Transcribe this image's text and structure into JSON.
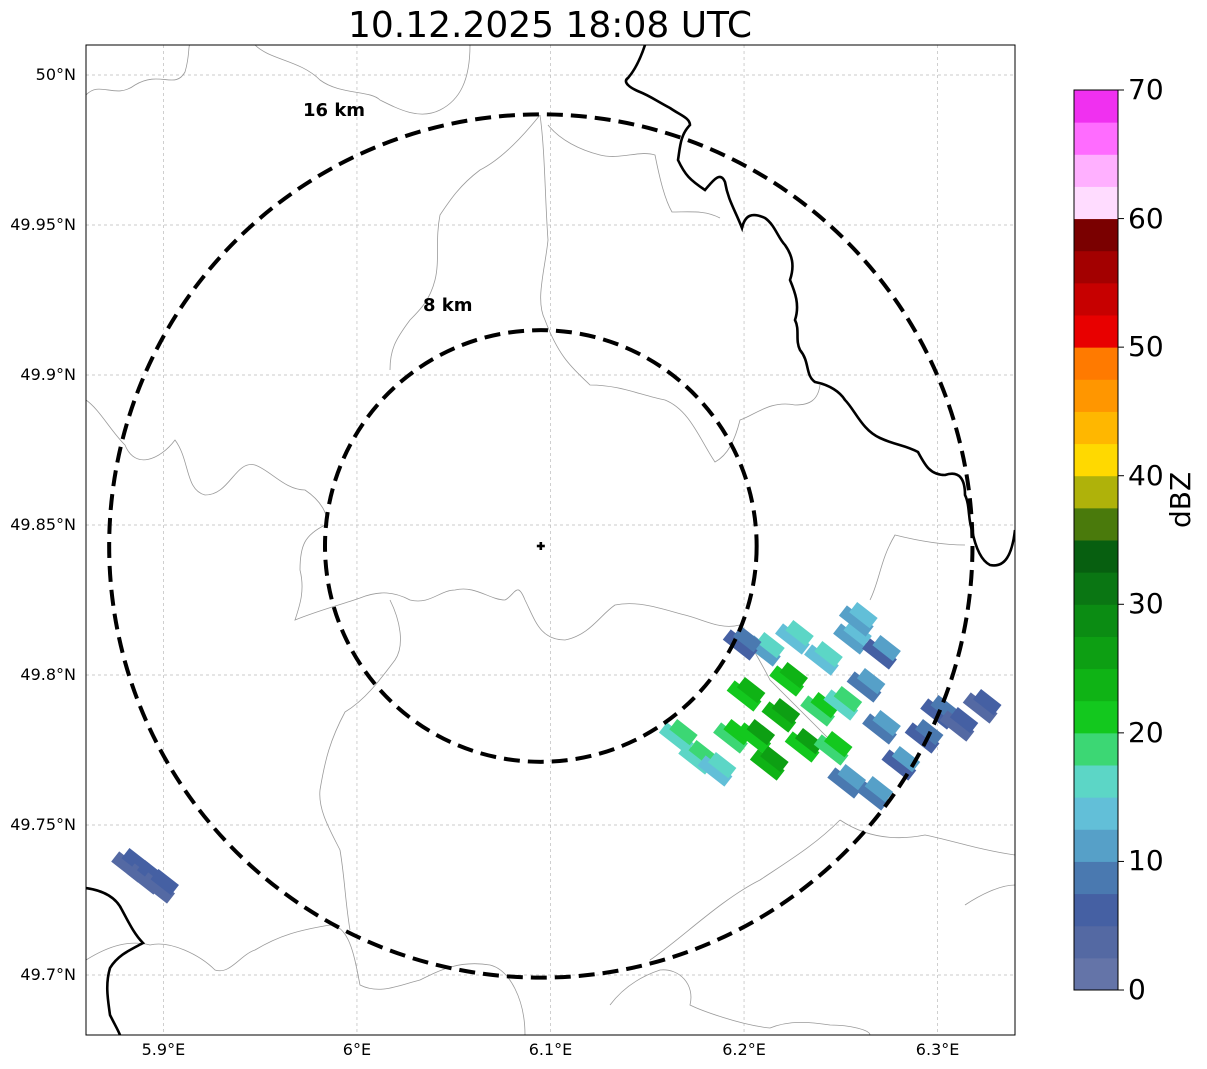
{
  "title": "10.12.2025 18:08 UTC",
  "axes": {
    "lat_ticks": [
      "50°N",
      "49.95°N",
      "49.9°N",
      "49.85°N",
      "49.8°N",
      "49.75°N",
      "49.7°N"
    ],
    "lon_ticks": [
      "5.9°E",
      "6°E",
      "6.1°E",
      "6.2°E",
      "6.3°E"
    ],
    "lat_range": [
      49.68,
      50.01
    ],
    "lon_range": [
      5.86,
      6.34
    ],
    "grid": "dashed"
  },
  "radar": {
    "center": {
      "lon": 6.095,
      "lat": 49.843
    },
    "rings": [
      {
        "label": "8 km",
        "radius_km": 8
      },
      {
        "label": "16 km",
        "radius_km": 16
      }
    ],
    "ring_style": "dashed"
  },
  "colorbar": {
    "label": "dBZ",
    "ticks": [
      "0",
      "10",
      "20",
      "30",
      "40",
      "50",
      "60",
      "70"
    ],
    "range": [
      0,
      70
    ],
    "colors": [
      "#6474a8",
      "#5469a3",
      "#4560a3",
      "#4a79b0",
      "#56a0c8",
      "#62bfd8",
      "#5cd6c6",
      "#3cd774",
      "#13c81e",
      "#0fb315",
      "#0d9f13",
      "#0b8c13",
      "#0a7613",
      "#075f10",
      "#4a7a0c",
      "#afb20a",
      "#ffd900",
      "#ffb700",
      "#ff9600",
      "#ff7a00",
      "#e80000",
      "#c70000",
      "#a30000",
      "#7a0000",
      "#ffdcff",
      "#ffb0ff",
      "#ff6cff",
      "#f030f0"
    ]
  },
  "echo_cells": [
    {
      "lon": 5.882,
      "lat": 49.736,
      "dbz": 4
    },
    {
      "lon": 5.89,
      "lat": 49.732,
      "dbz": 4
    },
    {
      "lon": 5.897,
      "lat": 49.729,
      "dbz": 3
    },
    {
      "lon": 6.165,
      "lat": 49.779,
      "dbz": 16
    },
    {
      "lon": 6.175,
      "lat": 49.772,
      "dbz": 15
    },
    {
      "lon": 6.185,
      "lat": 49.768,
      "dbz": 14
    },
    {
      "lon": 6.193,
      "lat": 49.779,
      "dbz": 18
    },
    {
      "lon": 6.2,
      "lat": 49.793,
      "dbz": 20
    },
    {
      "lon": 6.205,
      "lat": 49.779,
      "dbz": 22
    },
    {
      "lon": 6.212,
      "lat": 49.77,
      "dbz": 23
    },
    {
      "lon": 6.218,
      "lat": 49.786,
      "dbz": 24
    },
    {
      "lon": 6.222,
      "lat": 49.798,
      "dbz": 21
    },
    {
      "lon": 6.23,
      "lat": 49.776,
      "dbz": 22
    },
    {
      "lon": 6.238,
      "lat": 49.788,
      "dbz": 19
    },
    {
      "lon": 6.245,
      "lat": 49.775,
      "dbz": 18
    },
    {
      "lon": 6.25,
      "lat": 49.79,
      "dbz": 16
    },
    {
      "lon": 6.21,
      "lat": 49.808,
      "dbz": 12
    },
    {
      "lon": 6.225,
      "lat": 49.812,
      "dbz": 13
    },
    {
      "lon": 6.24,
      "lat": 49.805,
      "dbz": 14
    },
    {
      "lon": 6.255,
      "lat": 49.812,
      "dbz": 11
    },
    {
      "lon": 6.262,
      "lat": 49.796,
      "dbz": 9
    },
    {
      "lon": 6.27,
      "lat": 49.782,
      "dbz": 8
    },
    {
      "lon": 6.28,
      "lat": 49.77,
      "dbz": 7
    },
    {
      "lon": 6.292,
      "lat": 49.779,
      "dbz": 6
    },
    {
      "lon": 6.3,
      "lat": 49.787,
      "dbz": 5
    },
    {
      "lon": 6.31,
      "lat": 49.783,
      "dbz": 4
    },
    {
      "lon": 6.322,
      "lat": 49.789,
      "dbz": 3
    },
    {
      "lon": 6.266,
      "lat": 49.76,
      "dbz": 8
    },
    {
      "lon": 6.252,
      "lat": 49.764,
      "dbz": 9
    },
    {
      "lon": 6.198,
      "lat": 49.81,
      "dbz": 6
    },
    {
      "lon": 6.258,
      "lat": 49.818,
      "dbz": 10
    },
    {
      "lon": 6.27,
      "lat": 49.807,
      "dbz": 7
    }
  ]
}
